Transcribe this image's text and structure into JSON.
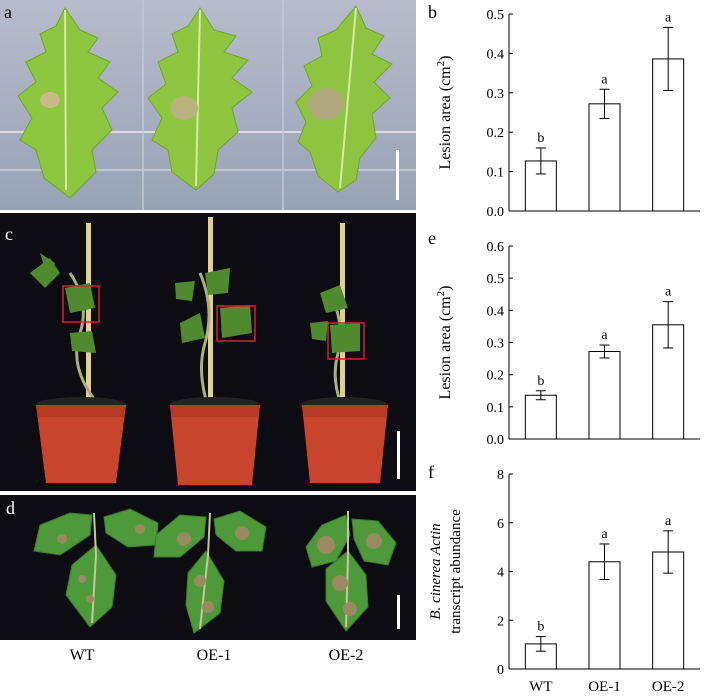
{
  "panels": {
    "a": {
      "label": "a"
    },
    "c": {
      "label": "c"
    },
    "d": {
      "label": "d"
    },
    "b": {
      "label": "b"
    },
    "e": {
      "label": "e"
    },
    "f": {
      "label": "f"
    }
  },
  "groups": [
    "WT",
    "OE-1",
    "OE-2"
  ],
  "colors": {
    "photo_a_bg": "#aab3c4",
    "photo_dark_bg": "#0c0c12",
    "leaf": "#8cc43a",
    "pot": "#c8442c",
    "stake": "#e2cf8e",
    "box": "#d0242c"
  },
  "chart_data": [
    {
      "panel": "b",
      "type": "bar",
      "categories": [
        "WT",
        "OE-1",
        "OE-2"
      ],
      "values": [
        0.127,
        0.272,
        0.386
      ],
      "errors": [
        0.033,
        0.037,
        0.08
      ],
      "letters": [
        "b",
        "a",
        "a"
      ],
      "ylabel": "Lesion area (cm",
      "ylabel_sup": "2",
      "ylabel_tail": ")",
      "ylim": [
        0,
        0.5
      ],
      "yticks": [
        "0.0",
        "0.1",
        "0.2",
        "0.3",
        "0.4",
        "0.5"
      ],
      "ytick_values": [
        0,
        0.1,
        0.2,
        0.3,
        0.4,
        0.5
      ]
    },
    {
      "panel": "e",
      "type": "bar",
      "categories": [
        "WT",
        "OE-1",
        "OE-2"
      ],
      "values": [
        0.136,
        0.272,
        0.355
      ],
      "errors": [
        0.014,
        0.02,
        0.072
      ],
      "letters": [
        "b",
        "a",
        "a"
      ],
      "ylabel": "Lesion area (cm",
      "ylabel_sup": "2",
      "ylabel_tail": ")",
      "ylim": [
        0,
        0.6
      ],
      "yticks": [
        "0.0",
        "0.1",
        "0.2",
        "0.3",
        "0.4",
        "0.5",
        "0.6"
      ],
      "ytick_values": [
        0,
        0.1,
        0.2,
        0.3,
        0.4,
        0.5,
        0.6
      ]
    },
    {
      "panel": "f",
      "type": "bar",
      "categories": [
        "WT",
        "OE-1",
        "OE-2"
      ],
      "values": [
        1.03,
        4.4,
        4.8
      ],
      "errors": [
        0.3,
        0.73,
        0.87
      ],
      "letters": [
        "b",
        "a",
        "a"
      ],
      "ylabel_line1": "B. cinerea Actin",
      "ylabel_line2": "transcript abundance",
      "ylim": [
        0,
        8
      ],
      "yticks": [
        "0",
        "2",
        "4",
        "6",
        "8"
      ],
      "ytick_values": [
        0,
        2,
        4,
        6,
        8
      ],
      "show_xticklabels": true
    }
  ]
}
